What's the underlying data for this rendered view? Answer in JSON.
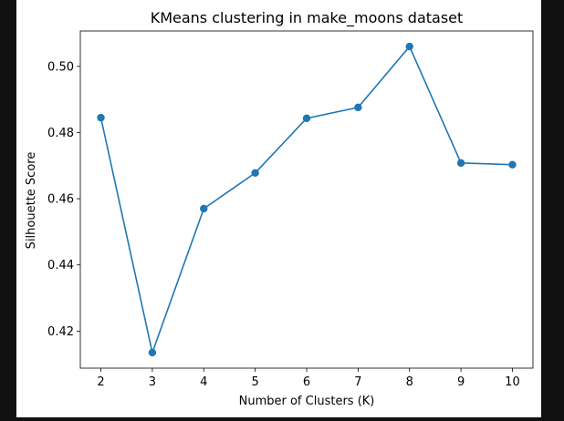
{
  "chart_data": {
    "type": "line",
    "title": "KMeans clustering in make_moons dataset",
    "xlabel": "Number of Clusters (K)",
    "ylabel": "Silhouette Score",
    "x": [
      2,
      3,
      4,
      5,
      6,
      7,
      8,
      9,
      10
    ],
    "series": [
      {
        "values": [
          0.4845,
          0.4135,
          0.457,
          0.4678,
          0.4843,
          0.4876,
          0.506,
          0.4708,
          0.4703
        ]
      }
    ],
    "xticks": [
      "2",
      "3",
      "4",
      "5",
      "6",
      "7",
      "8",
      "9",
      "10"
    ],
    "yticks": [
      "0.42",
      "0.44",
      "0.46",
      "0.48",
      "0.50"
    ],
    "xlim": [
      1.6,
      10.4
    ],
    "ylim": [
      0.4088,
      0.5107
    ],
    "grid": false,
    "color": "#1f77b4"
  }
}
